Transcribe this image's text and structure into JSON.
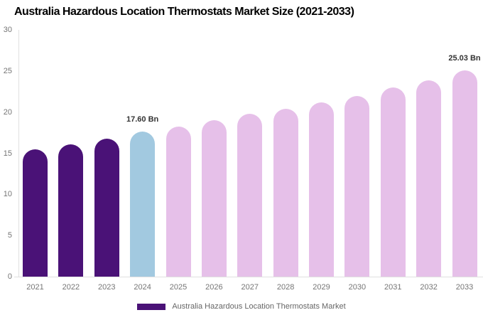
{
  "title": "Australia Hazardous Location Thermostats Market Size (2021-2033)",
  "legend": {
    "label": "Australia Hazardous Location Thermostats Market",
    "swatch_color": "#4a1277"
  },
  "chart_data": {
    "type": "bar",
    "title": "Australia Hazardous Location Thermostats Market Size (2021-2033)",
    "categories": [
      "2021",
      "2022",
      "2023",
      "2024",
      "2025",
      "2026",
      "2027",
      "2028",
      "2029",
      "2030",
      "2031",
      "2032",
      "2033"
    ],
    "values": [
      15.5,
      16.1,
      16.8,
      17.6,
      18.2,
      19.0,
      19.8,
      20.4,
      21.2,
      22.0,
      23.0,
      23.9,
      25.03
    ],
    "unit": "Bn",
    "ylim": [
      0,
      30
    ],
    "yticks": [
      0,
      5,
      10,
      15,
      20,
      25,
      30
    ],
    "grid": false,
    "legend_position": "bottom",
    "bar_colors": [
      "#4a1277",
      "#4a1277",
      "#4a1277",
      "#a2c9e0",
      "#e6c0e9",
      "#e6c0e9",
      "#e6c0e9",
      "#e6c0e9",
      "#e6c0e9",
      "#e6c0e9",
      "#e6c0e9",
      "#e6c0e9",
      "#e6c0e9"
    ],
    "data_labels": [
      {
        "index": 3,
        "text": "17.60 Bn"
      },
      {
        "index": 12,
        "text": "25.03 Bn"
      }
    ],
    "colors": {
      "historical": "#4a1277",
      "base_year": "#a2c9e0",
      "forecast": "#e6c0e9",
      "axis_line": "#e0e0e0",
      "tick_text": "#757575",
      "data_label_text": "#333333",
      "legend_text": "#666666",
      "title_text": "#000000"
    }
  }
}
